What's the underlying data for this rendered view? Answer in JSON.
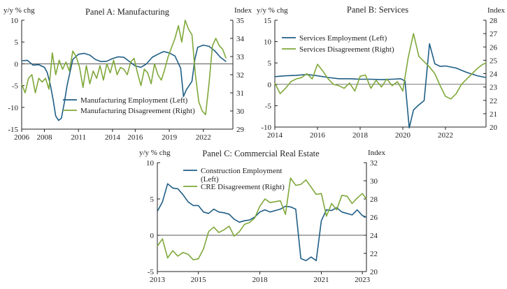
{
  "colors": {
    "employment": "#1f5e85",
    "disagreement": "#7fa83a",
    "axis": "#222222"
  },
  "chart_data": [
    {
      "id": "A",
      "type": "line",
      "title": "Panel A: Manufacturing",
      "left_unit": "y/y % chg",
      "right_unit": "Index",
      "x_range": [
        2006,
        2024.6
      ],
      "x_ticks": [
        2006,
        2008,
        2011,
        2014,
        2016,
        2019,
        2022
      ],
      "x_tick_labels": [
        "2006",
        "2008",
        "2011",
        "2014",
        "2016",
        "2019",
        "2022"
      ],
      "y_left": {
        "range": [
          -15,
          10
        ],
        "ticks": [
          10,
          5,
          0,
          -5,
          -10,
          -15
        ],
        "labels": [
          "10",
          "5",
          "0",
          "-5",
          "-10",
          "-15"
        ]
      },
      "y_right": {
        "range": [
          29,
          35
        ],
        "ticks": [
          35,
          34,
          33,
          32,
          31,
          30,
          29
        ],
        "labels": [
          "35",
          "34",
          "33",
          "32",
          "31",
          "30",
          "29"
        ]
      },
      "legend_position": "bottom-left",
      "series": [
        {
          "name": "Manufacturing Employment (Left)",
          "axis": "left",
          "color_key": "employment",
          "x": [
            2006.0,
            2006.5,
            2007.0,
            2007.5,
            2008.0,
            2008.25,
            2008.5,
            2008.75,
            2009.0,
            2009.25,
            2009.5,
            2009.75,
            2010.0,
            2010.5,
            2011.0,
            2011.5,
            2012.0,
            2012.5,
            2013.0,
            2013.5,
            2014.0,
            2014.5,
            2015.0,
            2015.5,
            2016.0,
            2016.5,
            2017.0,
            2017.5,
            2018.0,
            2018.5,
            2019.0,
            2019.5,
            2020.0,
            2020.25,
            2020.5,
            2020.75,
            2021.0,
            2021.25,
            2021.5,
            2022.0,
            2022.5,
            2023.0,
            2023.5,
            2024.0
          ],
          "y": [
            0.7,
            0.8,
            -0.3,
            -0.2,
            -0.8,
            -2.0,
            -4.5,
            -8.0,
            -12.0,
            -13.0,
            -12.5,
            -9.0,
            -5.0,
            1.0,
            2.2,
            2.4,
            2.0,
            1.0,
            0.5,
            0.6,
            1.2,
            1.6,
            1.5,
            0.5,
            -0.5,
            -0.8,
            0.0,
            1.5,
            2.2,
            2.8,
            2.5,
            1.8,
            -1.0,
            -7.5,
            -6.0,
            -5.0,
            -4.0,
            1.0,
            3.8,
            4.3,
            4.0,
            3.0,
            1.5,
            0.5
          ]
        },
        {
          "name": "Manufacturing Disagreement (Right)",
          "axis": "right",
          "color_key": "disagreement",
          "x": [
            2006.0,
            2006.3,
            2006.6,
            2006.9,
            2007.2,
            2007.5,
            2007.8,
            2008.1,
            2008.4,
            2008.7,
            2009.0,
            2009.3,
            2009.6,
            2009.9,
            2010.2,
            2010.5,
            2010.8,
            2011.1,
            2011.4,
            2011.7,
            2012.0,
            2012.3,
            2012.6,
            2012.9,
            2013.2,
            2013.5,
            2013.8,
            2014.1,
            2014.4,
            2014.7,
            2015.0,
            2015.3,
            2015.6,
            2015.9,
            2016.2,
            2016.5,
            2016.8,
            2017.1,
            2017.4,
            2017.7,
            2018.0,
            2018.3,
            2018.6,
            2018.9,
            2019.2,
            2019.5,
            2019.8,
            2020.1,
            2020.4,
            2020.7,
            2021.0,
            2021.3,
            2021.6,
            2021.9,
            2022.2,
            2022.5,
            2022.8,
            2023.1,
            2023.4,
            2023.7,
            2024.0
          ],
          "y": [
            31.5,
            31.0,
            31.8,
            32.0,
            31.0,
            31.8,
            31.6,
            31.8,
            31.2,
            33.2,
            32.0,
            32.8,
            32.3,
            32.7,
            32.2,
            33.3,
            33.0,
            32.4,
            31.3,
            32.5,
            31.5,
            32.2,
            31.8,
            32.5,
            31.7,
            32.6,
            32.1,
            32.8,
            32.0,
            32.4,
            32.3,
            32.0,
            32.7,
            32.9,
            32.1,
            31.4,
            32.3,
            32.1,
            31.5,
            32.6,
            32.0,
            31.7,
            32.3,
            33.0,
            33.5,
            34.0,
            34.7,
            33.8,
            35.0,
            34.5,
            34.2,
            32.0,
            30.5,
            30.0,
            29.8,
            31.5,
            33.6,
            34.0,
            33.6,
            33.4,
            32.9
          ]
        }
      ]
    },
    {
      "id": "B",
      "type": "line",
      "title": "Panel B: Services",
      "left_unit": "y/y % chg",
      "right_unit": "Index",
      "x_range": [
        2014,
        2023.9
      ],
      "x_ticks": [
        2014,
        2016,
        2018,
        2020,
        2022
      ],
      "x_tick_labels": [
        "2014",
        "2016",
        "2018",
        "2020",
        "2022"
      ],
      "y_left": {
        "range": [
          -10,
          15
        ],
        "ticks": [
          15,
          10,
          5,
          0,
          -5,
          -10
        ],
        "labels": [
          "15",
          "10",
          "5",
          "0",
          "-5",
          "-10"
        ]
      },
      "y_right": {
        "range": [
          20,
          28
        ],
        "ticks": [
          28,
          27,
          26,
          25,
          24,
          23,
          22,
          21,
          20
        ],
        "labels": [
          "28",
          "27",
          "26",
          "25",
          "24",
          "23",
          "22",
          "21",
          "20"
        ]
      },
      "legend_position": "top-left",
      "series": [
        {
          "name": "Services Employment (Left)",
          "axis": "left",
          "color_key": "employment",
          "x": [
            2014.0,
            2014.5,
            2015.0,
            2015.5,
            2016.0,
            2016.5,
            2017.0,
            2017.5,
            2018.0,
            2018.5,
            2019.0,
            2019.5,
            2019.9,
            2020.1,
            2020.3,
            2020.5,
            2020.75,
            2021.0,
            2021.25,
            2021.5,
            2021.75,
            2022.0,
            2022.5,
            2023.0,
            2023.5,
            2023.9
          ],
          "y": [
            1.8,
            2.0,
            2.1,
            2.3,
            2.0,
            1.6,
            1.3,
            1.3,
            1.2,
            1.2,
            1.1,
            1.2,
            1.3,
            0.8,
            -10.2,
            -6.0,
            -4.8,
            -3.8,
            9.5,
            4.8,
            4.2,
            4.3,
            3.8,
            2.8,
            2.0,
            1.6
          ]
        },
        {
          "name": "Services Disagreement (Right)",
          "axis": "right",
          "color_key": "disagreement",
          "x": [
            2014.0,
            2014.25,
            2014.5,
            2014.75,
            2015.0,
            2015.25,
            2015.5,
            2015.75,
            2016.0,
            2016.25,
            2016.5,
            2016.75,
            2017.0,
            2017.25,
            2017.5,
            2017.75,
            2018.0,
            2018.25,
            2018.5,
            2018.75,
            2019.0,
            2019.25,
            2019.5,
            2019.75,
            2020.0,
            2020.25,
            2020.5,
            2020.75,
            2021.0,
            2021.25,
            2021.5,
            2021.75,
            2022.0,
            2022.25,
            2022.5,
            2022.75,
            2023.0,
            2023.25,
            2023.5,
            2023.75,
            2023.9
          ],
          "y": [
            23.3,
            22.5,
            22.9,
            23.4,
            23.6,
            23.7,
            24.0,
            23.6,
            24.7,
            24.2,
            23.6,
            23.2,
            23.1,
            22.9,
            23.3,
            22.7,
            23.8,
            23.9,
            22.9,
            23.5,
            23.0,
            23.6,
            23.1,
            23.4,
            22.7,
            25.2,
            27.0,
            25.3,
            24.9,
            24.5,
            24.0,
            23.1,
            22.3,
            22.1,
            22.5,
            23.2,
            23.6,
            24.0,
            24.4,
            24.7,
            24.8
          ]
        }
      ]
    },
    {
      "id": "C",
      "type": "line",
      "title": "Panel C: Commercial Real Estate",
      "left_unit": "y/y % chg",
      "right_unit": "Index",
      "x_range": [
        2013,
        2023.2
      ],
      "x_ticks": [
        2013,
        2015,
        2018,
        2021,
        2023
      ],
      "x_tick_labels": [
        "2013",
        "2015",
        "2018",
        "2021",
        "2023"
      ],
      "y_left": {
        "range": [
          -5,
          10
        ],
        "ticks": [
          10,
          5,
          0,
          -5
        ],
        "labels": [
          "10",
          "5",
          "0",
          "-5"
        ]
      },
      "y_right": {
        "range": [
          20,
          32
        ],
        "ticks": [
          32,
          30,
          28,
          26,
          24,
          22,
          20
        ],
        "labels": [
          "32",
          "30",
          "28",
          "26",
          "24",
          "22",
          "20"
        ]
      },
      "legend_position": "top-left",
      "series": [
        {
          "name": "Construction Employment (Left)",
          "axis": "left",
          "color_key": "employment",
          "x": [
            2013.0,
            2013.25,
            2013.5,
            2013.75,
            2014.0,
            2014.25,
            2014.5,
            2014.75,
            2015.0,
            2015.25,
            2015.5,
            2015.75,
            2016.0,
            2016.25,
            2016.5,
            2016.75,
            2017.0,
            2017.25,
            2017.5,
            2017.75,
            2018.0,
            2018.25,
            2018.5,
            2018.75,
            2019.0,
            2019.25,
            2019.5,
            2019.75,
            2020.0,
            2020.25,
            2020.5,
            2020.75,
            2021.0,
            2021.25,
            2021.5,
            2021.75,
            2022.0,
            2022.25,
            2022.5,
            2022.75,
            2023.0,
            2023.2
          ],
          "y": [
            3.3,
            4.6,
            7.1,
            6.5,
            6.4,
            5.6,
            4.6,
            4.1,
            4.1,
            3.2,
            3.0,
            3.6,
            3.2,
            3.1,
            2.9,
            2.2,
            1.8,
            2.0,
            2.1,
            2.5,
            3.2,
            3.5,
            3.2,
            3.4,
            3.6,
            4.0,
            3.9,
            3.6,
            -3.2,
            -3.5,
            -3.0,
            -3.5,
            2.0,
            3.5,
            3.4,
            3.8,
            3.2,
            3.0,
            2.8,
            3.5,
            2.7,
            2.5
          ]
        },
        {
          "name": "CRE Disagreement (Right)",
          "axis": "right",
          "color_key": "disagreement",
          "x": [
            2013.0,
            2013.25,
            2013.5,
            2013.75,
            2014.0,
            2014.25,
            2014.5,
            2014.75,
            2015.0,
            2015.25,
            2015.5,
            2015.75,
            2016.0,
            2016.25,
            2016.5,
            2016.75,
            2017.0,
            2017.25,
            2017.5,
            2017.75,
            2018.0,
            2018.25,
            2018.5,
            2018.75,
            2019.0,
            2019.25,
            2019.5,
            2019.75,
            2020.0,
            2020.25,
            2020.5,
            2020.75,
            2021.0,
            2021.25,
            2021.5,
            2021.75,
            2022.0,
            2022.25,
            2022.5,
            2022.75,
            2023.0,
            2023.2
          ],
          "y": [
            22.8,
            23.6,
            21.5,
            22.3,
            21.7,
            22.1,
            21.9,
            21.3,
            21.4,
            22.5,
            24.4,
            24.9,
            24.3,
            24.6,
            25.0,
            23.9,
            24.4,
            25.2,
            25.4,
            25.9,
            27.2,
            28.0,
            27.6,
            27.7,
            27.8,
            26.3,
            30.3,
            29.5,
            29.6,
            30.1,
            29.3,
            28.5,
            28.6,
            26.1,
            27.5,
            26.8,
            28.4,
            28.3,
            27.5,
            28.1,
            28.6,
            28.0
          ]
        }
      ]
    }
  ]
}
